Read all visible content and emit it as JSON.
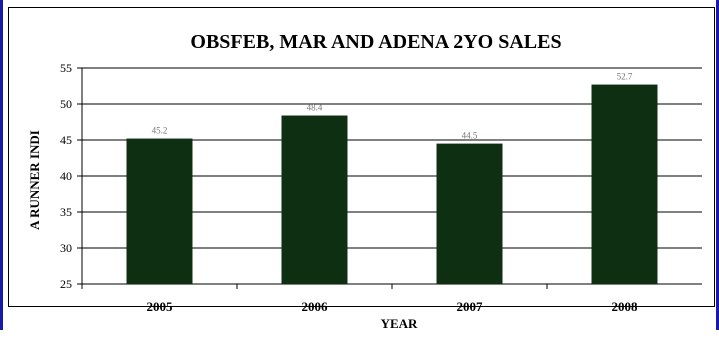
{
  "chart_data": {
    "type": "bar",
    "title": "OBSFEB, MAR AND ADENA 2YO SALES",
    "xlabel": "YEAR",
    "ylabel": "A RUNNER INDI",
    "categories": [
      "2005",
      "2006",
      "2007",
      "2008"
    ],
    "values": [
      45.2,
      48.4,
      44.5,
      52.7
    ],
    "data_labels": [
      "45.2",
      "48.4",
      "44.5",
      "52.7"
    ],
    "ylim": [
      25,
      55
    ],
    "yticks": [
      "25",
      "30",
      "35",
      "40",
      "45",
      "50",
      "55"
    ],
    "grid": true,
    "legend": "none",
    "colors": {
      "bar": "#0f2f12",
      "grid": "#000000",
      "frame": "#1a1aa8"
    }
  }
}
